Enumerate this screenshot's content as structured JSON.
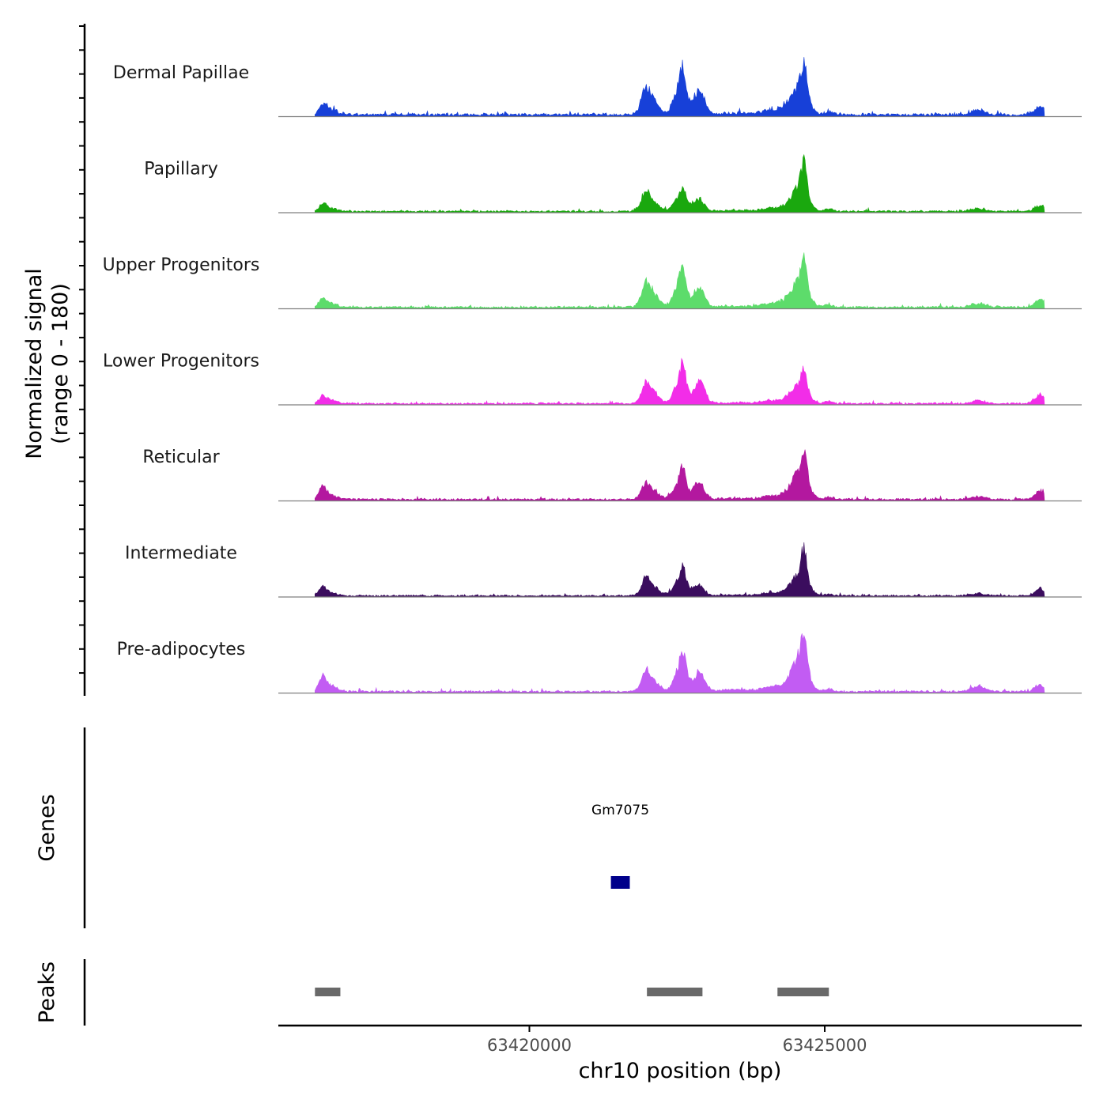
{
  "chart_data": {
    "type": "area",
    "title": "",
    "ylabel_line1": "Normalized signal",
    "ylabel_line2": "(range 0 - 180)",
    "xlabel": "chr10 position (bp)",
    "ylim": [
      0,
      180
    ],
    "xlim": [
      63415750,
      63429350
    ],
    "x_ticks": [
      {
        "value": 63420000,
        "label": "63420000"
      },
      {
        "value": 63425000,
        "label": "63425000"
      }
    ],
    "signal_range": [
      63416370,
      63428720
    ],
    "profile_peaks": [
      {
        "center": 63416500,
        "width": 60,
        "height": 0.12
      },
      {
        "center": 63416620,
        "width": 120,
        "height": 0.07
      },
      {
        "center": 63421960,
        "width": 60,
        "height": 0.22
      },
      {
        "center": 63422050,
        "width": 120,
        "height": 0.25
      },
      {
        "center": 63422550,
        "width": 100,
        "height": 0.38
      },
      {
        "center": 63422600,
        "width": 45,
        "height": 0.35
      },
      {
        "center": 63422800,
        "width": 80,
        "height": 0.12
      },
      {
        "center": 63422900,
        "width": 80,
        "height": 0.26
      },
      {
        "center": 63423500,
        "width": 300,
        "height": 0.02
      },
      {
        "center": 63424050,
        "width": 120,
        "height": 0.06
      },
      {
        "center": 63424330,
        "width": 120,
        "height": 0.08
      },
      {
        "center": 63424580,
        "width": 130,
        "height": 0.4
      },
      {
        "center": 63424650,
        "width": 45,
        "height": 0.4
      },
      {
        "center": 63425070,
        "width": 60,
        "height": 0.05
      },
      {
        "center": 63427600,
        "width": 120,
        "height": 0.06
      },
      {
        "center": 63428650,
        "width": 90,
        "height": 0.12
      }
    ],
    "tracks": [
      {
        "name": "Dermal Papillae",
        "color": "#1740d8",
        "max_signal": 180,
        "peak_scale": [
          1.0,
          1.0,
          1.0,
          1.0,
          1.0,
          1.0,
          1.0,
          1.0,
          1.0,
          1.0,
          1.0,
          1.0,
          1.0,
          1.0,
          1.0,
          1.0
        ]
      },
      {
        "name": "Papillary",
        "color": "#1aa80e",
        "max_signal": 175,
        "peak_scale": [
          1.0,
          1.0,
          1.2,
          1.0,
          0.8,
          0.7,
          1.0,
          0.75,
          1.0,
          1.0,
          1.0,
          1.3,
          1.5,
          1.0,
          1.0,
          1.0
        ]
      },
      {
        "name": "Upper Progenitors",
        "color": "#5ddc6b",
        "max_signal": 170,
        "peak_scale": [
          1.0,
          1.0,
          1.0,
          1.2,
          1.1,
          0.9,
          1.0,
          1.0,
          1.0,
          1.0,
          1.0,
          1.2,
          1.3,
          1.0,
          1.0,
          1.2
        ]
      },
      {
        "name": "Lower Progenitors",
        "color": "#f22de8",
        "max_signal": 140,
        "peak_scale": [
          1.0,
          1.0,
          1.0,
          1.2,
          1.3,
          1.2,
          1.0,
          1.5,
          1.0,
          1.0,
          1.0,
          1.0,
          0.9,
          1.0,
          1.0,
          1.6
        ]
      },
      {
        "name": "Reticular",
        "color": "#b3189f",
        "max_signal": 155,
        "peak_scale": [
          1.6,
          1.0,
          0.8,
          0.8,
          0.9,
          0.9,
          1.0,
          0.9,
          1.0,
          1.0,
          1.0,
          1.3,
          1.4,
          1.0,
          1.0,
          1.4
        ]
      },
      {
        "name": "Intermediate",
        "color": "#3b0d5e",
        "max_signal": 165,
        "peak_scale": [
          1.4,
          1.0,
          1.0,
          1.0,
          1.0,
          0.9,
          1.0,
          0.6,
          1.0,
          1.0,
          1.0,
          1.3,
          1.6,
          1.0,
          1.0,
          1.4
        ]
      },
      {
        "name": "Pre-adipocytes",
        "color": "#c25cf3",
        "max_signal": 180,
        "peak_scale": [
          2.0,
          1.5,
          1.0,
          1.0,
          1.1,
          1.2,
          1.0,
          1.1,
          2.0,
          1.2,
          1.3,
          1.5,
          1.6,
          1.0,
          1.5,
          1.0
        ]
      }
    ],
    "genes_title": "Genes",
    "genes": [
      {
        "name": "Gm7075",
        "start": 63421380,
        "end": 63421700,
        "color": "#00008b"
      }
    ],
    "peaks_title": "Peaks",
    "peak_color": "#696969",
    "peaks": [
      {
        "start": 63416370,
        "end": 63416800
      },
      {
        "start": 63421990,
        "end": 63422930
      },
      {
        "start": 63424200,
        "end": 63425070
      }
    ]
  }
}
